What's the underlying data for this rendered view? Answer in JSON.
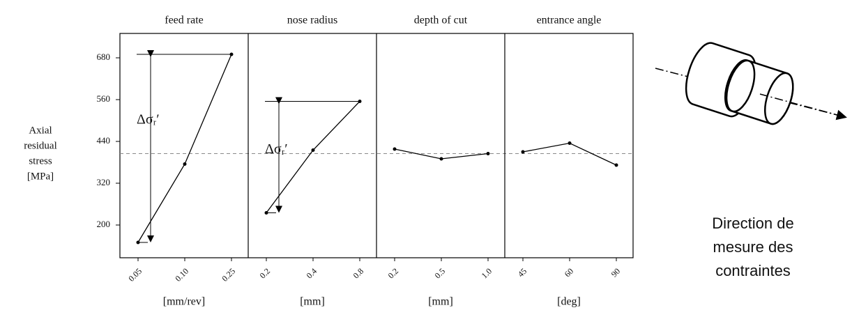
{
  "chart_data": {
    "type": "line",
    "ylabel_lines": [
      "Axial",
      "residual",
      "stress",
      "[MPa]"
    ],
    "ylim": [
      106,
      750
    ],
    "yticks": [
      200,
      320,
      440,
      560,
      680
    ],
    "reference_line": 405,
    "panels": [
      {
        "title": "feed rate",
        "unit": "[mm/rev]",
        "categories": [
          "0.05",
          "0.10",
          "0.25"
        ],
        "values": [
          150,
          375,
          690
        ],
        "annotation": "Δσᵣ′"
      },
      {
        "title": "nose radius",
        "unit": "[mm]",
        "categories": [
          "0.2",
          "0.4",
          "0.8"
        ],
        "values": [
          235,
          415,
          555
        ],
        "annotation": "Δσᵣ′"
      },
      {
        "title": "depth of cut",
        "unit": "[mm]",
        "categories": [
          "0.2",
          "0.5",
          "1.0"
        ],
        "values": [
          418,
          390,
          405
        ]
      },
      {
        "title": "entrance angle",
        "unit": "[deg]",
        "categories": [
          "45",
          "60",
          "90"
        ],
        "values": [
          410,
          435,
          372
        ]
      }
    ]
  },
  "diagram": {
    "caption_lines": [
      "Direction de",
      "mesure des",
      "contraintes"
    ]
  }
}
